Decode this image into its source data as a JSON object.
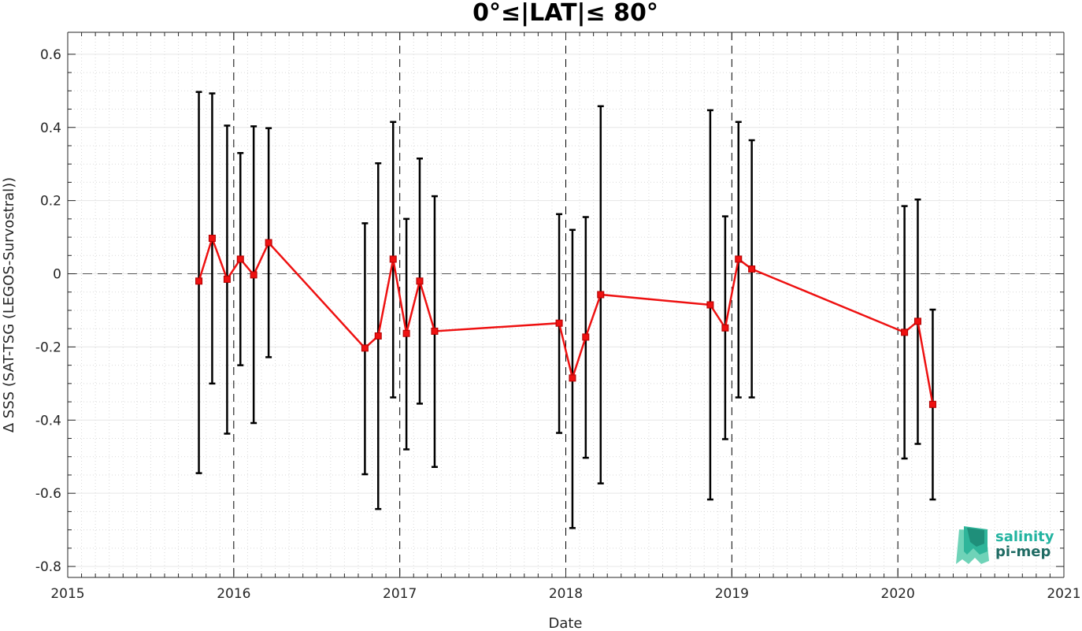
{
  "chart_data": {
    "type": "line",
    "title": "0°≤|LAT|≤ 80°",
    "xlabel": "Date",
    "ylabel": "Δ SSS (SAT-TSG (LEGOS-Survostral))",
    "xlim": [
      2015,
      2021
    ],
    "ylim": [
      -0.83,
      0.66
    ],
    "x_ticks": [
      "2015",
      "2016",
      "2017",
      "2018",
      "2019",
      "2020",
      "2021"
    ],
    "y_ticks": [
      "0.6",
      "0.4",
      "0.2",
      "0",
      "-0.2",
      "-0.4",
      "-0.6",
      "-0.8"
    ],
    "grid": true,
    "zero_line": 0,
    "year_markers": [
      2016,
      2017,
      2018,
      2019,
      2020
    ],
    "colors": {
      "series": "#ee1111",
      "errorbar": "#000000",
      "grid": "#d9d9d9"
    },
    "series": [
      {
        "x": [
          2015.79,
          2015.87,
          2015.96,
          2016.04,
          2016.12,
          2016.21,
          2016.79,
          2016.87,
          2016.96,
          2017.04,
          2017.12,
          2017.21,
          2017.96,
          2018.04,
          2018.12,
          2018.21,
          2018.87,
          2018.96,
          2019.04,
          2019.12,
          2020.04,
          2020.12,
          2020.21
        ],
        "y": [
          -0.02,
          0.097,
          -0.015,
          0.04,
          -0.003,
          0.085,
          -0.203,
          -0.17,
          0.04,
          -0.163,
          -0.02,
          -0.157,
          -0.135,
          -0.285,
          -0.173,
          -0.057,
          -0.085,
          -0.148,
          0.04,
          0.013,
          -0.16,
          -0.13,
          -0.357
        ],
        "err_low": [
          -0.545,
          -0.3,
          -0.437,
          -0.25,
          -0.408,
          -0.228,
          -0.548,
          -0.643,
          -0.338,
          -0.48,
          -0.355,
          -0.528,
          -0.435,
          -0.695,
          -0.503,
          -0.573,
          -0.617,
          -0.452,
          -0.338,
          -0.338,
          -0.505,
          -0.465,
          -0.617
        ],
        "err_high": [
          0.497,
          0.493,
          0.405,
          0.33,
          0.403,
          0.398,
          0.138,
          0.302,
          0.415,
          0.15,
          0.315,
          0.212,
          0.163,
          0.12,
          0.155,
          0.458,
          0.447,
          0.157,
          0.415,
          0.365,
          0.185,
          0.203,
          -0.098
        ]
      }
    ]
  },
  "logo": {
    "line1": "salinity",
    "line2": "pi-mep"
  }
}
